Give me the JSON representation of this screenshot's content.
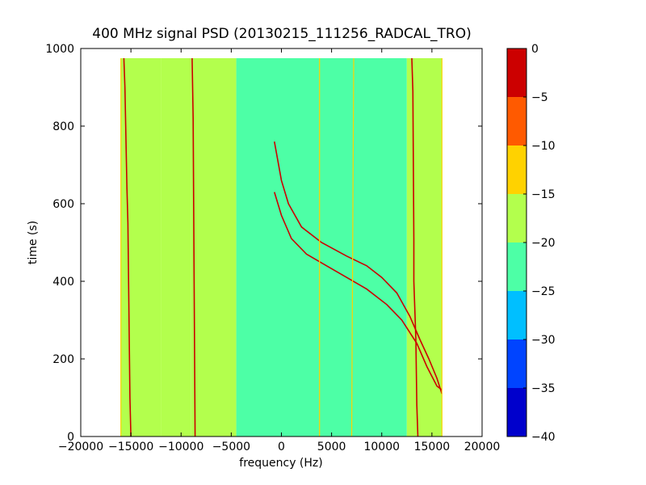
{
  "chart_data": {
    "type": "heatmap",
    "title": "400 MHz signal PSD (20130215_111256_RADCAL_TRO)",
    "xlabel": "frequency (Hz)",
    "ylabel": "time (s)",
    "xlim": [
      -20000,
      20000
    ],
    "ylim": [
      0,
      1000
    ],
    "x_ticks": [
      -20000,
      -15000,
      -10000,
      -5000,
      0,
      5000,
      10000,
      15000,
      20000
    ],
    "x_tick_labels": [
      "−20000",
      "−15000",
      "−10000",
      "−5000",
      "0",
      "5000",
      "10000",
      "15000",
      "20000"
    ],
    "y_ticks": [
      0,
      200,
      400,
      600,
      800,
      1000
    ],
    "y_tick_labels": [
      "0",
      "200",
      "400",
      "600",
      "800",
      "1000"
    ],
    "data_extent": {
      "x": [
        -16000,
        16000
      ],
      "y": [
        0,
        975
      ]
    },
    "background_levels": [
      {
        "x": [
          -16000,
          -12000
        ],
        "level": -17.5
      },
      {
        "x": [
          -12000,
          -9000
        ],
        "level": -17.5
      },
      {
        "x": [
          -9000,
          -4500
        ],
        "level": -17.5
      },
      {
        "x": [
          -4500,
          12500
        ],
        "level": -22.5
      },
      {
        "x": [
          12500,
          16000
        ],
        "level": -17.5
      }
    ],
    "traces": [
      {
        "level": -2.5,
        "points": [
          [
            -15700,
            975
          ],
          [
            -15600,
            900
          ],
          [
            -15400,
            640
          ],
          [
            -15300,
            550
          ],
          [
            -15100,
            100
          ],
          [
            -15000,
            0
          ]
        ]
      },
      {
        "level": -2.5,
        "points": [
          [
            -8900,
            975
          ],
          [
            -8800,
            820
          ],
          [
            -8700,
            400
          ],
          [
            -8600,
            0
          ]
        ]
      },
      {
        "level": -2.5,
        "points": [
          [
            13000,
            975
          ],
          [
            13100,
            890
          ],
          [
            13200,
            510
          ],
          [
            13200,
            400
          ],
          [
            13400,
            250
          ],
          [
            13500,
            80
          ],
          [
            13600,
            0
          ]
        ]
      },
      {
        "level": -2.5,
        "points": [
          [
            -700,
            760
          ],
          [
            0,
            660
          ],
          [
            700,
            600
          ],
          [
            2000,
            540
          ],
          [
            4000,
            500
          ],
          [
            6500,
            465
          ],
          [
            8500,
            440
          ],
          [
            10000,
            410
          ],
          [
            11500,
            370
          ],
          [
            12800,
            310
          ],
          [
            13800,
            250
          ],
          [
            14700,
            200
          ],
          [
            15500,
            150
          ],
          [
            16000,
            110
          ]
        ]
      },
      {
        "level": -2.5,
        "points": [
          [
            -700,
            630
          ],
          [
            0,
            570
          ],
          [
            1000,
            510
          ],
          [
            2500,
            470
          ],
          [
            4500,
            440
          ],
          [
            6500,
            410
          ],
          [
            8500,
            380
          ],
          [
            10500,
            340
          ],
          [
            12000,
            300
          ],
          [
            13500,
            240
          ],
          [
            14500,
            180
          ],
          [
            15500,
            130
          ],
          [
            16000,
            120
          ]
        ]
      },
      {
        "level": -12.5,
        "points": [
          [
            3800,
            975
          ],
          [
            3800,
            0
          ]
        ]
      },
      {
        "level": -12.5,
        "points": [
          [
            7200,
            975
          ],
          [
            7000,
            0
          ]
        ]
      },
      {
        "level": -12.5,
        "points": [
          [
            -16000,
            975
          ],
          [
            -16000,
            0
          ]
        ]
      },
      {
        "level": -12.5,
        "points": [
          [
            16000,
            975
          ],
          [
            16000,
            0
          ]
        ]
      }
    ],
    "colorbar": {
      "levels": [
        -40,
        -35,
        -30,
        -25,
        -20,
        -15,
        -10,
        -5,
        0
      ],
      "tick_labels": [
        "−40",
        "−35",
        "−30",
        "−25",
        "−20",
        "−15",
        "−10",
        "−5",
        "0"
      ],
      "colors": [
        "#0000cc",
        "#0044ff",
        "#00bfff",
        "#4dffa6",
        "#b3ff4d",
        "#ffd200",
        "#ff5a00",
        "#cc0000"
      ]
    }
  }
}
